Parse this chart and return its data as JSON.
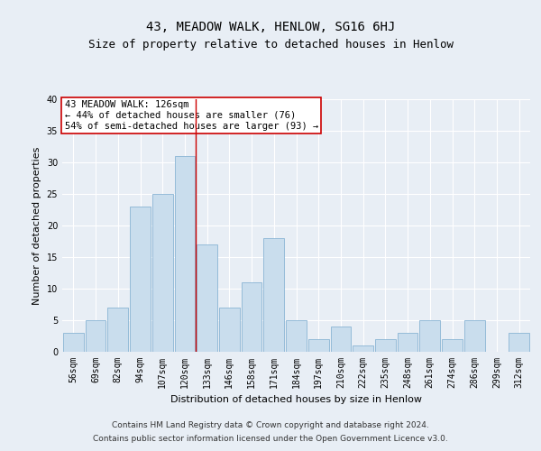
{
  "title": "43, MEADOW WALK, HENLOW, SG16 6HJ",
  "subtitle": "Size of property relative to detached houses in Henlow",
  "xlabel": "Distribution of detached houses by size in Henlow",
  "ylabel": "Number of detached properties",
  "categories": [
    "56sqm",
    "69sqm",
    "82sqm",
    "94sqm",
    "107sqm",
    "120sqm",
    "133sqm",
    "146sqm",
    "158sqm",
    "171sqm",
    "184sqm",
    "197sqm",
    "210sqm",
    "222sqm",
    "235sqm",
    "248sqm",
    "261sqm",
    "274sqm",
    "286sqm",
    "299sqm",
    "312sqm"
  ],
  "values": [
    3,
    5,
    7,
    23,
    25,
    31,
    17,
    7,
    11,
    18,
    5,
    2,
    4,
    1,
    2,
    3,
    5,
    2,
    5,
    0,
    3
  ],
  "bar_color": "#c9dded",
  "bar_edge_color": "#8ab4d4",
  "reference_line_x": 5.5,
  "reference_line_color": "#cc0000",
  "annotation_text": "43 MEADOW WALK: 126sqm\n← 44% of detached houses are smaller (76)\n54% of semi-detached houses are larger (93) →",
  "annotation_box_color": "#ffffff",
  "annotation_box_edge_color": "#cc0000",
  "ylim": [
    0,
    40
  ],
  "yticks": [
    0,
    5,
    10,
    15,
    20,
    25,
    30,
    35,
    40
  ],
  "footer_line1": "Contains HM Land Registry data © Crown copyright and database right 2024.",
  "footer_line2": "Contains public sector information licensed under the Open Government Licence v3.0.",
  "bg_color": "#e8eef5",
  "plot_bg_color": "#e8eef5",
  "grid_color": "#ffffff",
  "title_fontsize": 10,
  "subtitle_fontsize": 9,
  "axis_label_fontsize": 8,
  "tick_fontsize": 7,
  "footer_fontsize": 6.5,
  "annotation_fontsize": 7.5
}
